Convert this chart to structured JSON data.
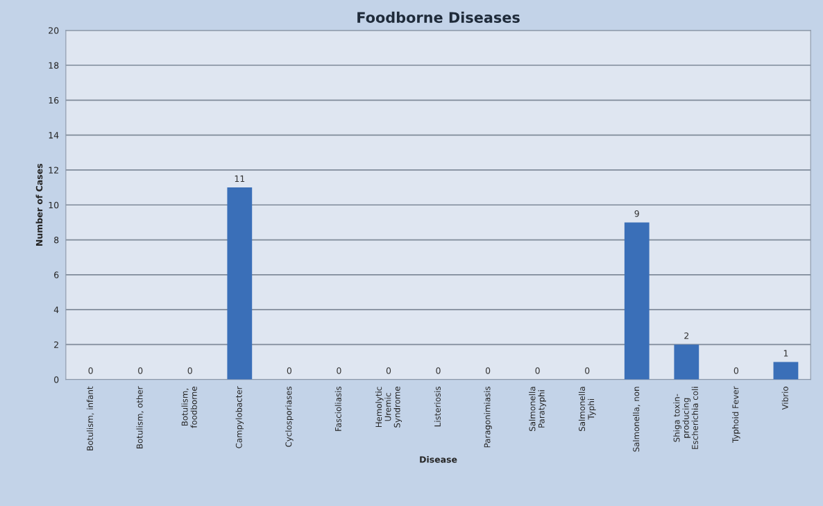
{
  "chart_data": {
    "type": "bar",
    "title": "Foodborne Diseases",
    "xlabel": "Disease",
    "ylabel": "Number of Cases",
    "categories": [
      "Botulism, infant",
      "Botulism, other",
      "Botulism,\nfoodborne",
      "Campylobacter",
      "Cyclosporiases",
      "Fascioliasis",
      "Hemolytic\nUremic\nSyndrome",
      "Listeriosis",
      "Paragonimiasis",
      "Salmonella\nParatyphi",
      "Salmonella\nTyphi",
      "Salmonella, non",
      "Shiga toxin-\nproducing\nEscherichia coli",
      "Typhoid Fever",
      "Vibrio"
    ],
    "values": [
      0,
      0,
      0,
      11,
      0,
      0,
      0,
      0,
      0,
      0,
      0,
      9,
      2,
      0,
      1
    ],
    "color": "#3a6fb8",
    "ylim": [
      0,
      20
    ],
    "yticks": [
      0,
      2,
      4,
      6,
      8,
      10,
      12,
      14,
      16,
      18,
      20
    ],
    "grid": "y",
    "data_labels": true,
    "legend": false
  }
}
